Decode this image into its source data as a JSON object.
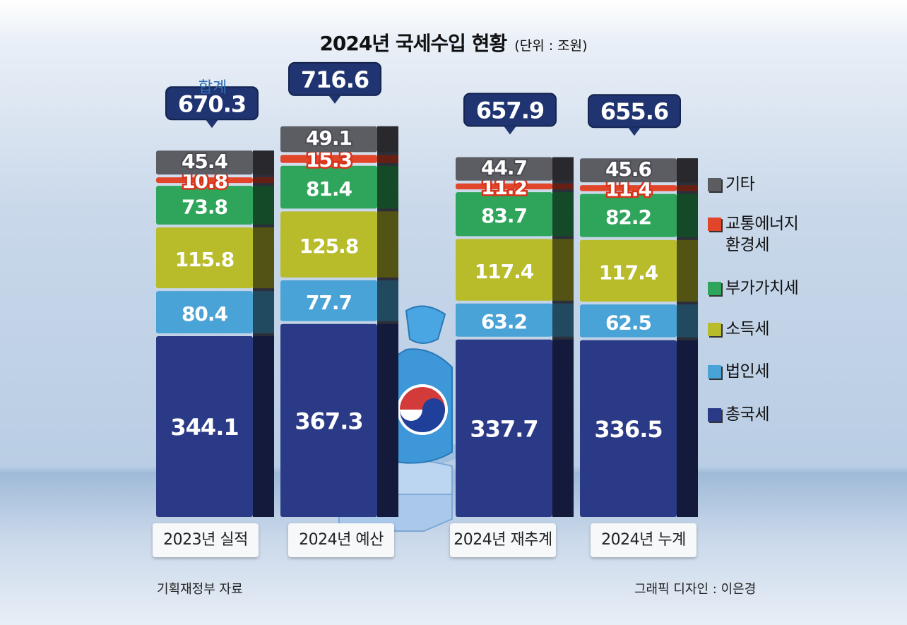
{
  "title": "2024년 국세수입 현황",
  "unit": "(단위 : 조원)",
  "sum_caption": "합계",
  "source": "기획재정부 자료",
  "credit": "그래픽 디자인 : 이은경",
  "chart_data": {
    "type": "bar",
    "stacked": true,
    "title": "2024년 국세수입 현황",
    "unit": "조원",
    "categories": [
      "2023년 실적",
      "2024년 예산",
      "2024년 재추계",
      "2024년 누계"
    ],
    "totals": [
      "670.3",
      "716.6",
      "657.9",
      "655.6"
    ],
    "series": [
      {
        "name": "총국세",
        "color": "#2b3a86",
        "values": [
          "344.1",
          "367.3",
          "337.7",
          "336.5"
        ]
      },
      {
        "name": "법인세",
        "color": "#4aa3d6",
        "values": [
          "80.4",
          "77.7",
          "63.2",
          "62.5"
        ]
      },
      {
        "name": "소득세",
        "color": "#b8bb2a",
        "values": [
          "115.8",
          "125.8",
          "117.4",
          "117.4"
        ]
      },
      {
        "name": "부가가치세",
        "color": "#2ea55a",
        "values": [
          "73.8",
          "81.4",
          "83.7",
          "82.2"
        ]
      },
      {
        "name": "교통에너지\n환경세",
        "color": "#e2462a",
        "values": [
          "10.8",
          "15.3",
          "11.2",
          "11.4"
        ]
      },
      {
        "name": "기타",
        "color": "#5c5c63",
        "values": [
          "45.4",
          "49.1",
          "44.7",
          "45.6"
        ]
      }
    ],
    "legend": [
      "기타",
      "교통에너지\n환경세",
      "부가가치세",
      "소득세",
      "법인세",
      "총국세"
    ]
  }
}
